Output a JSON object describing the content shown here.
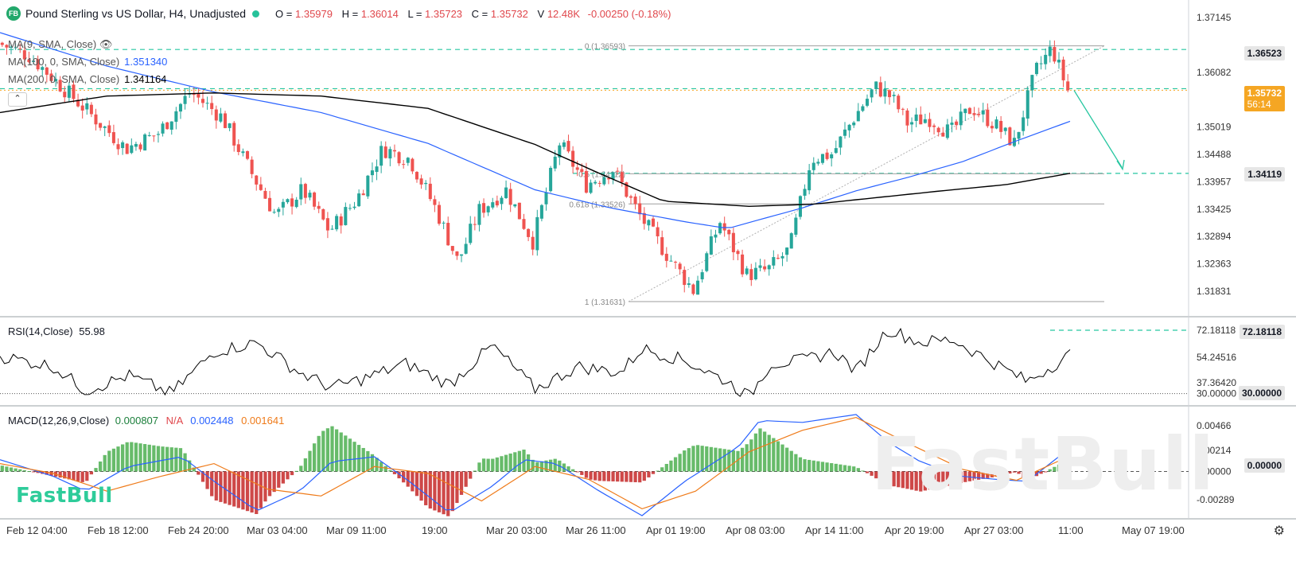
{
  "header": {
    "badge": "FB",
    "title": "Pound Sterling vs US Dollar, H4, Unadjusted",
    "ohlc": [
      {
        "k": "O =",
        "v": "1.35979"
      },
      {
        "k": "H =",
        "v": "1.36014"
      },
      {
        "k": "L =",
        "v": "1.35723"
      },
      {
        "k": "C =",
        "v": "1.35732"
      },
      {
        "k": "V",
        "v": "12.48K"
      },
      {
        "k": "",
        "v": "-0.00250 (-0.18%)"
      }
    ]
  },
  "indicators": {
    "ma9": {
      "label": "MA(9, SMA, Close)"
    },
    "ma100": {
      "label": "MA(100, 0, SMA, Close)",
      "value": "1.351340",
      "color": "#2962ff"
    },
    "ma200": {
      "label": "MA(200, 0, SMA, Close)",
      "value": "1.341164",
      "color": "#000000"
    },
    "rsi": {
      "label": "RSI(14,Close)",
      "value": "55.98"
    },
    "macd": {
      "label": "MACD(12,26,9,Close)",
      "hist": "0.000807",
      "na": "N/A",
      "macd": "0.002448",
      "signal": "0.001641"
    }
  },
  "price_tags": {
    "high_line": "1.36523",
    "current": "1.35732",
    "countdown": "56:14",
    "ma200_tag": "1.34119",
    "rsi_tag": "72.18118",
    "rsi_30": "30.00000",
    "macd_zero": "0.00000"
  },
  "fib_labels": {
    "f0": "0 (1.36593)",
    "f05": "0.5 (1.34112)",
    "f0618": "0.618 (1.33526)",
    "f1": "1 (1.31631)"
  },
  "watermark": "FastBull",
  "colors": {
    "up": "#26a69a",
    "down": "#ef5350",
    "ma100": "#2962ff",
    "ma200": "#000000",
    "accent": "#26c6a0",
    "current": "#f5a623"
  },
  "chart_data": [
    {
      "type": "line",
      "title": "Pound Sterling vs US Dollar, H4, Unadjusted",
      "x_ticks": [
        "Feb 12 04:00",
        "Feb 18 12:00",
        "Feb 24 20:00",
        "Mar 03 04:00",
        "Mar 09 11:00",
        "19:00",
        "Mar 20 03:00",
        "Mar 26 11:00",
        "Apr 01 19:00",
        "Apr 08 03:00",
        "Apr 14 11:00",
        "Apr 20 19:00",
        "Apr 27 03:00",
        "11:00",
        "May 07 19:00"
      ],
      "y_ticks": [
        "1.37145",
        "1.36082",
        "1.35019",
        "1.34488",
        "1.33957",
        "1.33425",
        "1.32894",
        "1.32363",
        "1.31831"
      ],
      "ylim": [
        1.3143,
        1.3736
      ],
      "close_path": {
        "x": [
          0,
          0.03,
          0.06,
          0.09,
          0.12,
          0.15,
          0.18,
          0.21,
          0.235,
          0.26,
          0.285,
          0.31,
          0.335,
          0.36,
          0.385,
          0.41,
          0.43,
          0.45,
          0.475,
          0.5,
          0.525,
          0.55,
          0.575,
          0.6,
          0.625,
          0.65,
          0.675,
          0.7,
          0.72,
          0.74,
          0.76,
          0.78,
          0.8,
          0.82,
          0.835,
          0.85,
          0.87,
          0.89,
          0.91,
          0.93,
          0.95,
          0.97,
          0.985,
          1.0
        ],
        "y": [
          1.3665,
          1.364,
          1.358,
          1.352,
          1.346,
          1.349,
          1.357,
          1.352,
          1.342,
          1.333,
          1.338,
          1.33,
          1.336,
          1.346,
          1.344,
          1.334,
          1.324,
          1.334,
          1.338,
          1.328,
          1.347,
          1.339,
          1.342,
          1.333,
          1.3255,
          1.3185,
          1.3318,
          1.3215,
          1.3225,
          1.3265,
          1.344,
          1.345,
          1.352,
          1.358,
          1.356,
          1.351,
          1.352,
          1.349,
          1.354,
          1.351,
          1.347,
          1.361,
          1.3655,
          1.3573
        ]
      },
      "ma100": {
        "x": [
          0,
          0.1,
          0.2,
          0.3,
          0.4,
          0.5,
          0.57,
          0.64,
          0.68,
          0.75,
          0.8,
          0.85,
          0.9,
          0.95,
          1.0
        ],
        "y": [
          1.3685,
          1.362,
          1.357,
          1.353,
          1.347,
          1.338,
          1.3345,
          1.3318,
          1.3305,
          1.3345,
          1.3378,
          1.3405,
          1.3435,
          1.3475,
          1.3513
        ]
      },
      "ma200": {
        "x": [
          0,
          0.1,
          0.2,
          0.3,
          0.4,
          0.5,
          0.56,
          0.62,
          0.7,
          0.76,
          0.82,
          0.88,
          0.94,
          1.0
        ],
        "y": [
          1.353,
          1.3562,
          1.3568,
          1.3562,
          1.3538,
          1.3468,
          1.3412,
          1.3358,
          1.3348,
          1.3352,
          1.3365,
          1.3378,
          1.339,
          1.3412
        ]
      },
      "levels": [
        1.36523,
        1.35732,
        1.34119
      ],
      "fib": {
        "0": 1.36593,
        "0.5": 1.34112,
        "0.618": 1.33526,
        "1": 1.31631
      }
    },
    {
      "type": "line",
      "title": "RSI(14,Close)",
      "y_ticks": [
        "72.18118",
        "54.24516",
        "37.36420",
        "30.00000"
      ],
      "ylim": [
        24,
        78
      ],
      "x": [
        0,
        0.05,
        0.08,
        0.12,
        0.16,
        0.2,
        0.24,
        0.28,
        0.31,
        0.34,
        0.38,
        0.42,
        0.46,
        0.5,
        0.54,
        0.58,
        0.6,
        0.64,
        0.68,
        0.7,
        0.72,
        0.75,
        0.78,
        0.8,
        0.83,
        0.86,
        0.89,
        0.92,
        0.96,
        1.0
      ],
      "values": [
        55,
        48,
        32,
        42,
        30,
        58,
        64,
        44,
        34,
        40,
        50,
        36,
        62,
        33,
        48,
        44,
        60,
        52,
        38,
        28,
        50,
        52,
        58,
        45,
        73,
        64,
        66,
        54,
        38,
        56
      ]
    },
    {
      "type": "bar",
      "title": "MACD(12,26,9,Close)",
      "y_ticks": [
        "0.00466",
        "0.00214",
        "0.00000",
        "-0.00289"
      ],
      "ylim": [
        -0.0045,
        0.0062
      ],
      "macd": {
        "x": [
          0,
          0.05,
          0.08,
          0.12,
          0.17,
          0.2,
          0.24,
          0.28,
          0.31,
          0.35,
          0.38,
          0.42,
          0.46,
          0.49,
          0.52,
          0.56,
          0.6,
          0.64,
          0.69,
          0.71,
          0.75,
          0.8,
          0.83,
          0.86,
          0.9,
          0.93,
          0.96,
          1.0
        ],
        "y": [
          0.0012,
          -0.0005,
          -0.002,
          0.0005,
          0.0015,
          -0.001,
          -0.004,
          -0.002,
          0.001,
          0.0015,
          -0.0008,
          -0.0042,
          -0.0015,
          0.0012,
          0.0008,
          -0.002,
          -0.0045,
          -0.001,
          0.0025,
          0.0052,
          0.005,
          0.0058,
          0.003,
          0.001,
          -0.0005,
          -0.0008,
          -0.001,
          0.0024
        ]
      },
      "signal": {
        "x": [
          0,
          0.05,
          0.1,
          0.15,
          0.2,
          0.25,
          0.3,
          0.35,
          0.4,
          0.45,
          0.5,
          0.55,
          0.6,
          0.65,
          0.7,
          0.75,
          0.8,
          0.85,
          0.9,
          0.95,
          1.0
        ],
        "y": [
          0.0008,
          -0.0002,
          -0.002,
          -0.0005,
          0.0008,
          -0.0018,
          -0.0025,
          0.0005,
          -0.0002,
          -0.003,
          0.0005,
          -0.0008,
          -0.0038,
          -0.002,
          0.002,
          0.0042,
          0.0055,
          0.0028,
          0.0002,
          -0.0009,
          0.0016
        ]
      }
    }
  ]
}
